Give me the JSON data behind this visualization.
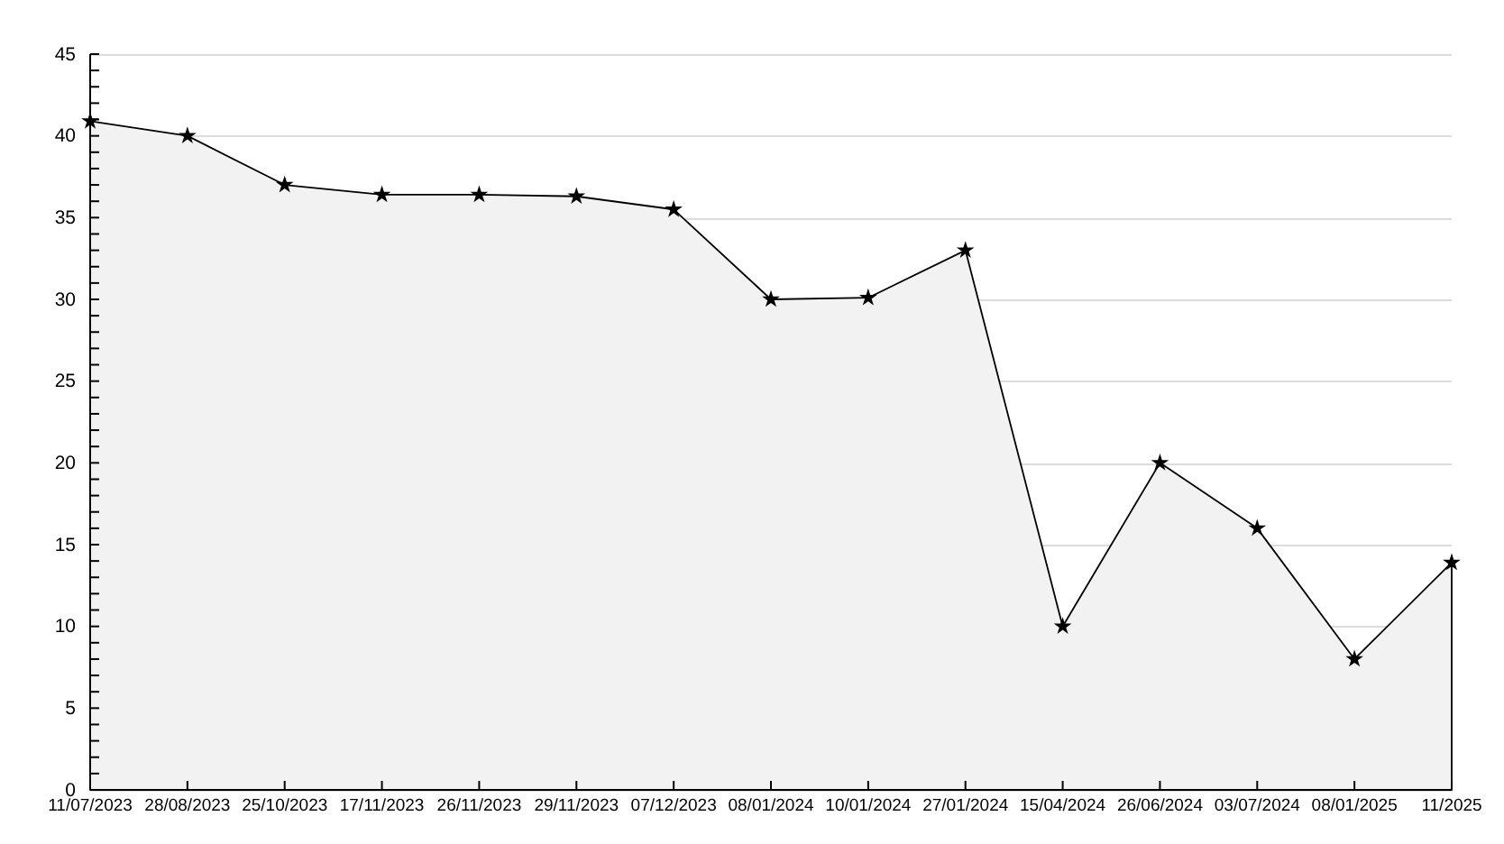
{
  "chart_data": {
    "type": "area",
    "categories": [
      "11/07/2023",
      "28/08/2023",
      "25/10/2023",
      "17/11/2023",
      "26/11/2023",
      "29/11/2023",
      "07/12/2023",
      "08/01/2024",
      "10/01/2024",
      "27/01/2024",
      "15/04/2024",
      "26/06/2024",
      "03/07/2024",
      "08/01/2025",
      "11/2025"
    ],
    "values": [
      40.9,
      40.0,
      37.0,
      36.4,
      36.4,
      36.3,
      35.5,
      30.0,
      30.1,
      33.0,
      10.0,
      20.0,
      16.0,
      8.0,
      13.9
    ],
    "color": "#000000",
    "ylim": [
      0,
      45
    ],
    "yticks": [
      0,
      {
        "value": 1,
        "label": null
      },
      {
        "value": 2,
        "label": null
      },
      {
        "value": 3,
        "label": null
      },
      {
        "value": 4,
        "label": null
      },
      5,
      {
        "value": 6,
        "label": null
      },
      {
        "value": 7,
        "label": null
      },
      {
        "value": 8,
        "label": null
      },
      {
        "value": 9,
        "label": null
      },
      10,
      {
        "value": 11,
        "label": null
      },
      {
        "value": 12,
        "label": null
      },
      {
        "value": 13,
        "label": null
      },
      {
        "value": 14,
        "label": null
      },
      15,
      {
        "value": 16,
        "label": null
      },
      {
        "value": 17,
        "label": null
      },
      {
        "value": 18,
        "label": null
      },
      {
        "value": 19,
        "label": null
      },
      20,
      {
        "value": 21,
        "label": null
      },
      {
        "value": 22,
        "label": null
      },
      {
        "value": 23,
        "label": null
      },
      {
        "value": 24,
        "label": null
      },
      25,
      {
        "value": 26,
        "label": null
      },
      {
        "value": 27,
        "label": null
      },
      {
        "value": 28,
        "label": null
      },
      {
        "value": 29,
        "label": null
      },
      30,
      {
        "value": 31,
        "label": null
      },
      {
        "value": 32,
        "label": null
      },
      {
        "value": 33,
        "label": null
      },
      {
        "value": 34,
        "label": null
      },
      35,
      {
        "value": 36,
        "label": null
      },
      {
        "value": 37,
        "label": null
      },
      {
        "value": 38,
        "label": null
      },
      {
        "value": 39,
        "label": null
      },
      40,
      {
        "value": 41,
        "label": null
      },
      {
        "value": 42,
        "label": null
      },
      {
        "value": 43,
        "label": null
      },
      {
        "value": 44,
        "label": null
      },
      45
    ],
    "grid": "y",
    "marker": "star",
    "line_style": "solid"
  }
}
